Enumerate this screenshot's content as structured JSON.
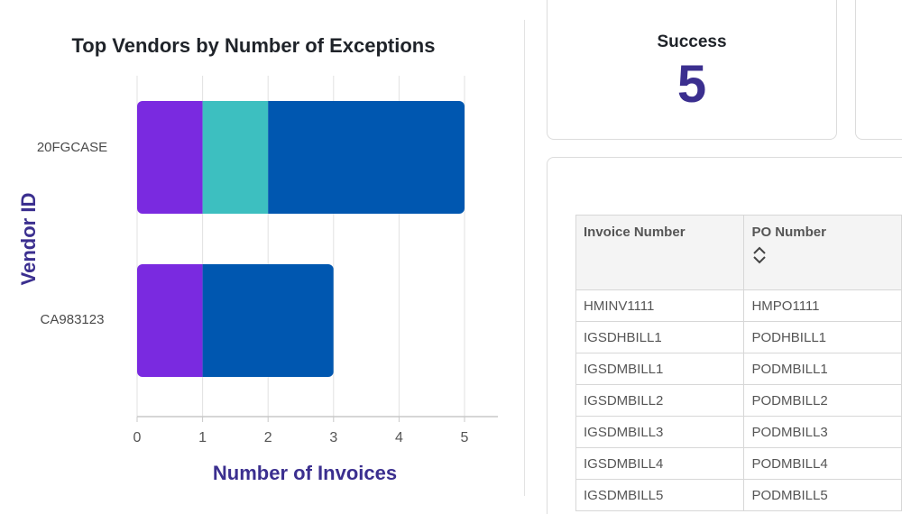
{
  "chart_data": {
    "type": "bar",
    "orientation": "horizontal",
    "stacked": true,
    "title": "Top Vendors by Number of Exceptions",
    "xlabel": "Number of Invoices",
    "ylabel": "Vendor ID",
    "categories": [
      "20FGCASE",
      "CA983123"
    ],
    "series": [
      {
        "color": "#7a2ae0",
        "values": [
          1,
          1
        ]
      },
      {
        "color": "#3dbfc0",
        "values": [
          1,
          0
        ]
      },
      {
        "color": "#0057b0",
        "values": [
          3,
          2
        ]
      }
    ],
    "xlim": [
      0,
      5.5
    ],
    "xticks": [
      0,
      1,
      2,
      3,
      4,
      5
    ],
    "grid": true
  },
  "success_card": {
    "label": "Success",
    "value": "5"
  },
  "table": {
    "columns": [
      "Invoice Number",
      "PO Number"
    ],
    "rows": [
      [
        "HMINV1111",
        "HMPO1111"
      ],
      [
        "IGSDHBILL1",
        "PODHBILL1"
      ],
      [
        "IGSDMBILL1",
        "PODMBILL1"
      ],
      [
        "IGSDMBILL2",
        "PODMBILL2"
      ],
      [
        "IGSDMBILL3",
        "PODMBILL3"
      ],
      [
        "IGSDMBILL4",
        "PODMBILL4"
      ],
      [
        "IGSDMBILL5",
        "PODMBILL5"
      ]
    ]
  },
  "icons": {
    "sort": "sort-updown-icon"
  }
}
